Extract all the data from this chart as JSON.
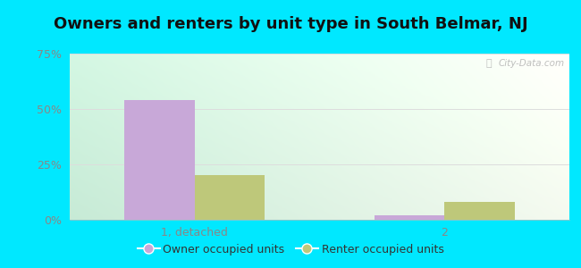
{
  "title": "Owners and renters by unit type in South Belmar, NJ",
  "categories": [
    "1, detached",
    "2"
  ],
  "owner_values": [
    54.0,
    2.0
  ],
  "renter_values": [
    20.0,
    8.0
  ],
  "owner_color": "#c8a8d8",
  "renter_color": "#bec87a",
  "owner_label": "Owner occupied units",
  "renter_label": "Renter occupied units",
  "ylim": [
    0,
    75
  ],
  "yticks": [
    0,
    25,
    50,
    75
  ],
  "yticklabels": [
    "0%",
    "25%",
    "50%",
    "75%"
  ],
  "bar_width": 0.28,
  "figure_bg": "#00e8ff",
  "plot_bg_topleft": "#c8e8d8",
  "plot_bg_topright": "#e8f0e0",
  "plot_bg_bottomleft": "#d8f0e0",
  "plot_bg_bottomright": "#f4f8f0",
  "watermark": "City-Data.com",
  "title_fontsize": 13,
  "legend_fontsize": 9,
  "tick_fontsize": 9,
  "tick_color": "#888888",
  "gridline_color": "#dddddd"
}
